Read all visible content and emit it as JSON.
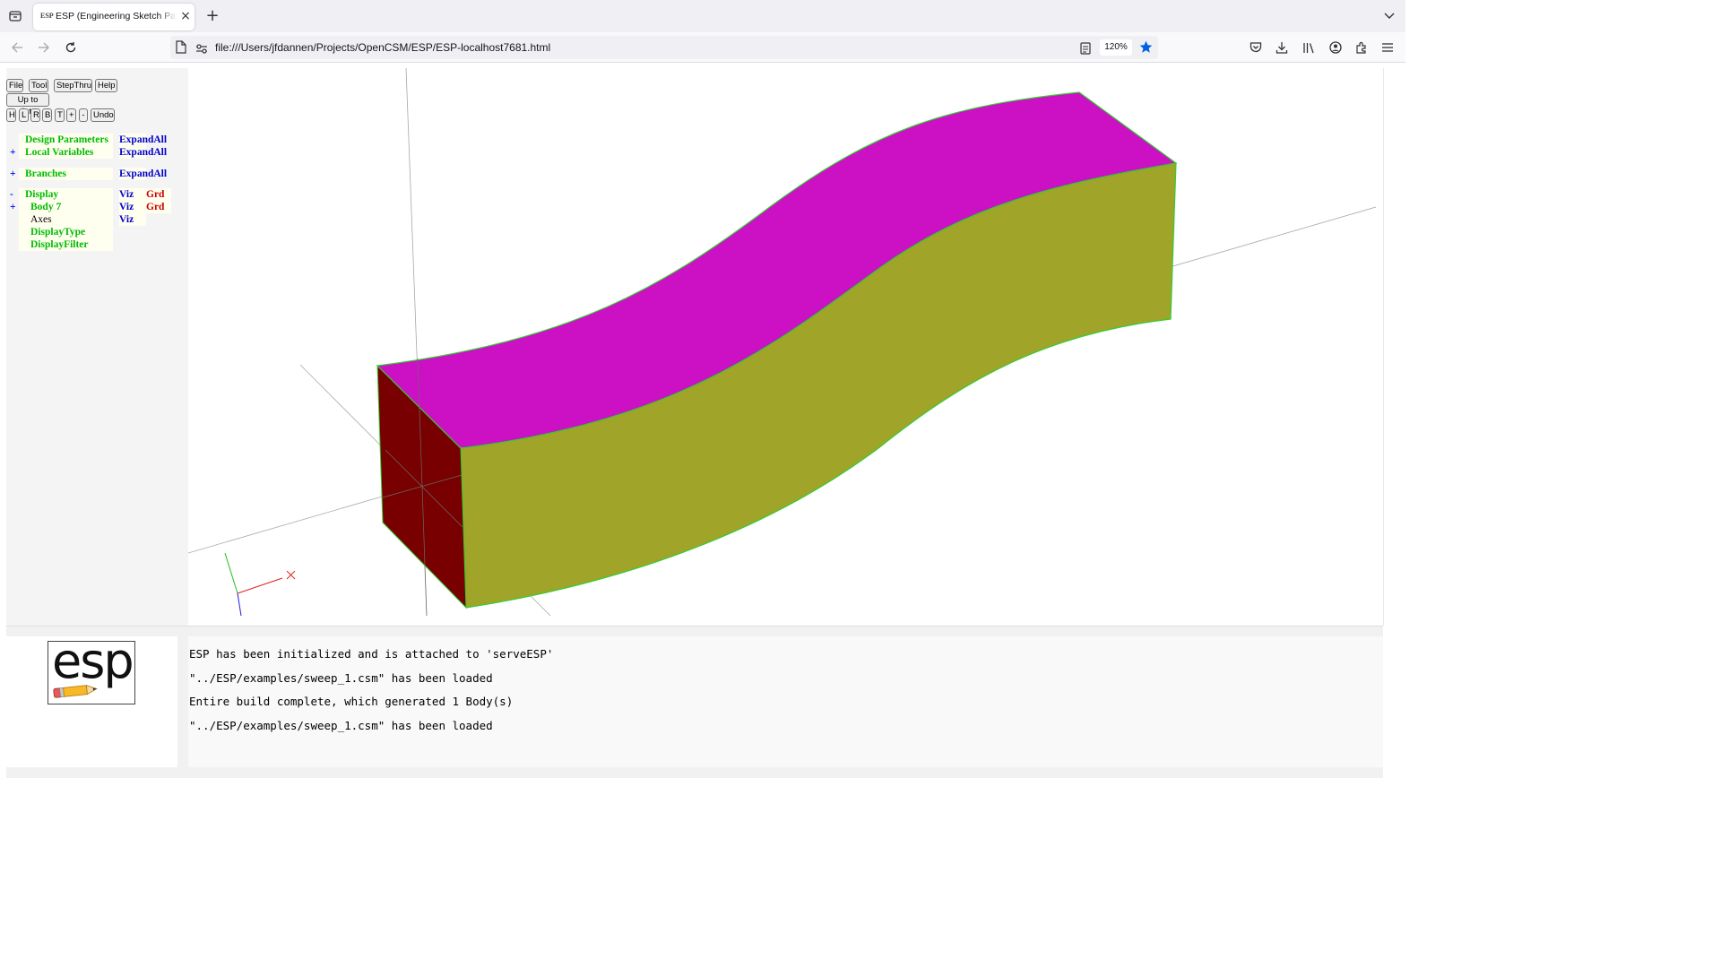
{
  "browser": {
    "tab_title": "ESP (Engineering Sketch Pad, V",
    "favicon_text": "ESP",
    "url": "file:///Users/jfdannen/Projects/OpenCSM/ESP/ESP-localhost7681.html",
    "zoom": "120%"
  },
  "toolbar": {
    "row1": [
      "File",
      "Tool",
      "StepThru",
      "Help"
    ],
    "status": "Up to date",
    "row3": [
      "H",
      "L",
      "R",
      "B",
      "T",
      "+",
      "-",
      "Undo"
    ]
  },
  "tree": {
    "design_parameters": {
      "pm": "",
      "name": "Design Parameters",
      "c1": "ExpandAll"
    },
    "local_variables": {
      "pm": "+",
      "name": "Local Variables",
      "c1": "ExpandAll"
    },
    "branches": {
      "pm": "+",
      "name": "Branches",
      "c1": "ExpandAll"
    },
    "display": {
      "pm": "-",
      "name": "Display",
      "c1": "Viz",
      "c2": "Grd"
    },
    "body7": {
      "pm": "+",
      "name": "Body 7",
      "c1": "Viz",
      "c2": "Grd"
    },
    "axes": {
      "name": "Axes",
      "c1": "Viz"
    },
    "display_type": {
      "name": "DisplayType"
    },
    "display_filter": {
      "name": "DisplayFilter"
    }
  },
  "logo": {
    "text": "esp"
  },
  "messages": [
    "ESP has been initialized and is attached to 'serveESP'",
    "\"../ESP/examples/sweep_1.csm\" has been loaded",
    "Entire build complete, which generated 1 Body(s)",
    "\"../ESP/examples/sweep_1.csm\" has been loaded"
  ],
  "colors": {
    "top_face": "#cc10c4",
    "side_face": "#a0a428",
    "end_face": "#780000",
    "edge": "#33cc33",
    "accent": "#0060df"
  }
}
